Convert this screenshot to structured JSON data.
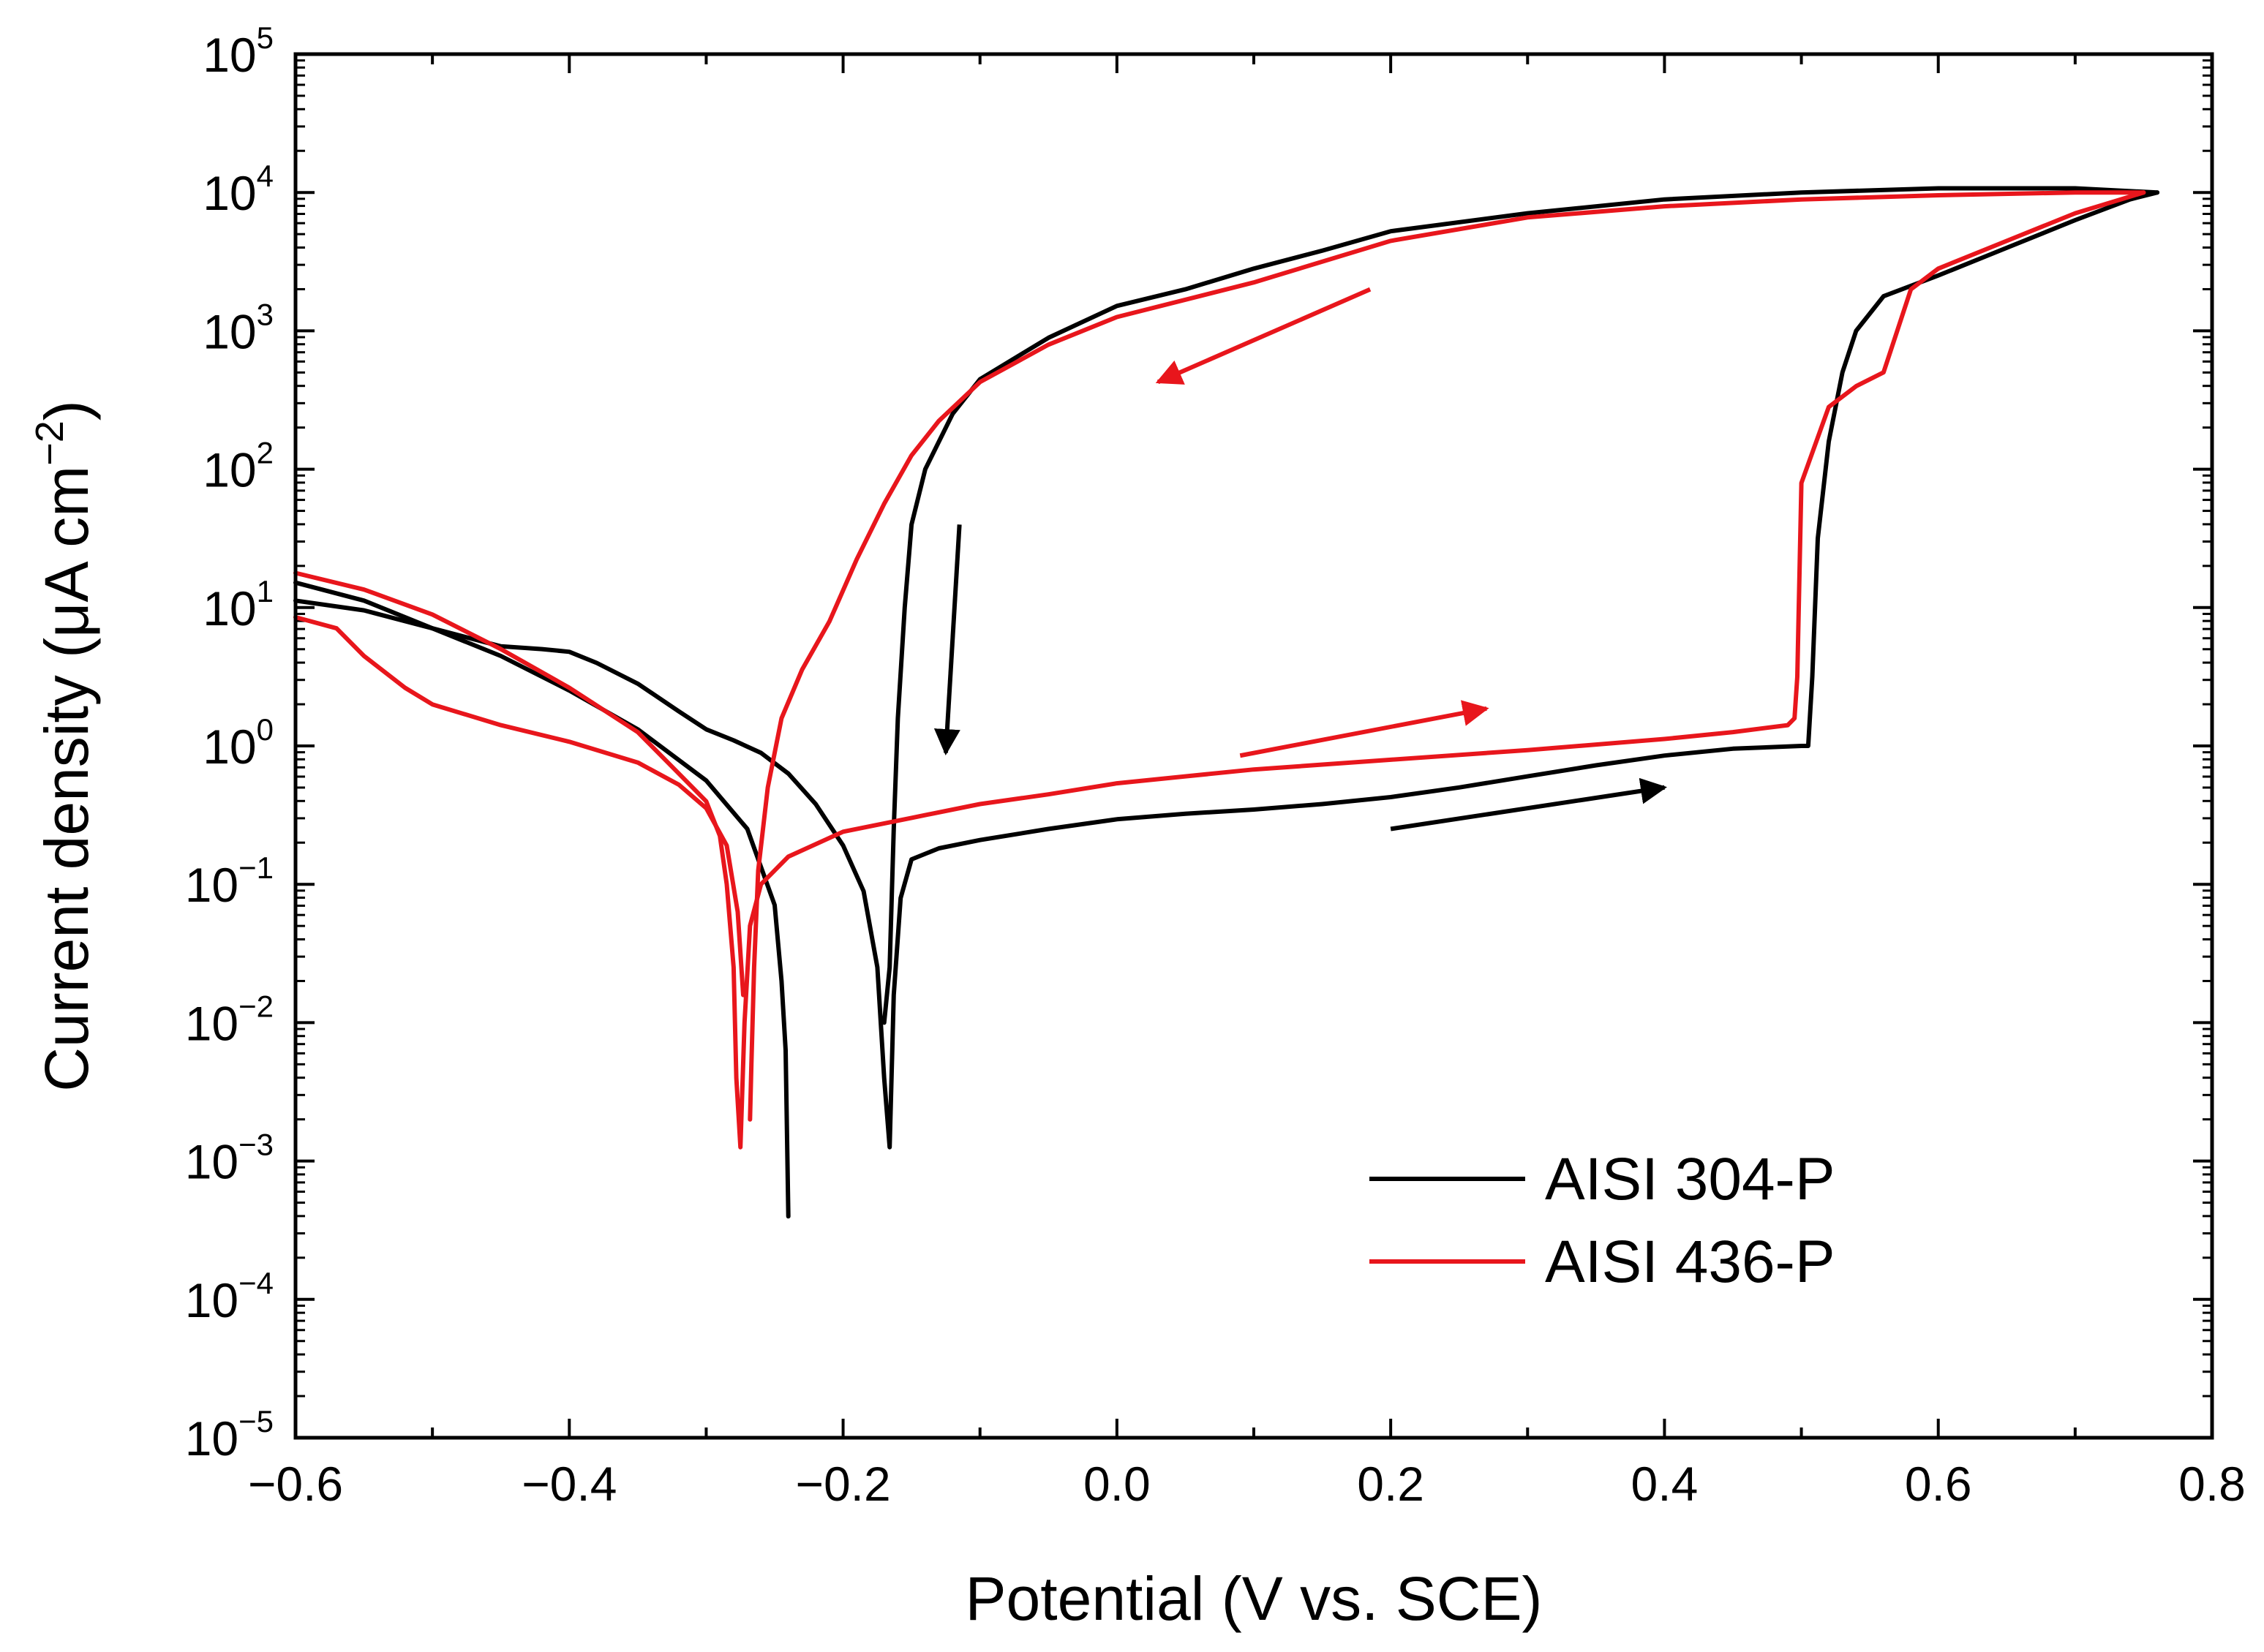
{
  "chart_data": {
    "type": "line",
    "title": "",
    "xlabel": "Potential (V vs. SCE)",
    "ylabel_main": "Current density (",
    "ylabel_mu": "μA",
    "ylabel_cm": " cm",
    "ylabel_sup": "−2",
    "ylabel_close": ")",
    "xlim": [
      -0.6,
      0.8
    ],
    "ylim_log10": [
      -5,
      5
    ],
    "yscale": "log",
    "xticks": [
      {
        "v": -0.6,
        "label": "−0.6"
      },
      {
        "v": -0.4,
        "label": "−0.4"
      },
      {
        "v": -0.2,
        "label": "−0.2"
      },
      {
        "v": 0.0,
        "label": "0.0"
      },
      {
        "v": 0.2,
        "label": "0.2"
      },
      {
        "v": 0.4,
        "label": "0.4"
      },
      {
        "v": 0.6,
        "label": "0.6"
      },
      {
        "v": 0.8,
        "label": "0.8"
      }
    ],
    "yticks": [
      {
        "e": 5,
        "base": "10",
        "exp": "5"
      },
      {
        "e": 4,
        "base": "10",
        "exp": "4"
      },
      {
        "e": 3,
        "base": "10",
        "exp": "3"
      },
      {
        "e": 2,
        "base": "10",
        "exp": "2"
      },
      {
        "e": 1,
        "base": "10",
        "exp": "1"
      },
      {
        "e": 0,
        "base": "10",
        "exp": "0"
      },
      {
        "e": -1,
        "base": "10",
        "exp": "−1"
      },
      {
        "e": -2,
        "base": "10",
        "exp": "−2"
      },
      {
        "e": -3,
        "base": "10",
        "exp": "−3"
      },
      {
        "e": -4,
        "base": "10",
        "exp": "−4"
      },
      {
        "e": -5,
        "base": "10",
        "exp": "−5"
      }
    ],
    "legend_position": "bottom-right",
    "series": [
      {
        "name": "AISI 304-P",
        "color": "#000000",
        "segments": [
          [
            [
              -0.6,
              1.18
            ],
            [
              -0.55,
              1.05
            ],
            [
              -0.5,
              0.85
            ],
            [
              -0.45,
              0.72
            ],
            [
              -0.42,
              0.7
            ],
            [
              -0.4,
              0.68
            ],
            [
              -0.38,
              0.6
            ],
            [
              -0.35,
              0.45
            ],
            [
              -0.32,
              0.25
            ],
            [
              -0.3,
              0.12
            ],
            [
              -0.28,
              0.04
            ],
            [
              -0.26,
              -0.05
            ],
            [
              -0.24,
              -0.2
            ],
            [
              -0.22,
              -0.42
            ],
            [
              -0.2,
              -0.72
            ],
            [
              -0.185,
              -1.05
            ],
            [
              -0.175,
              -1.6
            ],
            [
              -0.17,
              -2.4
            ],
            [
              -0.166,
              -2.9
            ],
            [
              -0.163,
              -1.8
            ],
            [
              -0.158,
              -1.1
            ],
            [
              -0.15,
              -0.82
            ],
            [
              -0.13,
              -0.74
            ],
            [
              -0.1,
              -0.68
            ],
            [
              -0.05,
              -0.6
            ],
            [
              0.0,
              -0.53
            ],
            [
              0.05,
              -0.49
            ],
            [
              0.1,
              -0.46
            ],
            [
              0.15,
              -0.42
            ],
            [
              0.2,
              -0.37
            ],
            [
              0.25,
              -0.3
            ],
            [
              0.3,
              -0.22
            ],
            [
              0.35,
              -0.14
            ],
            [
              0.4,
              -0.07
            ],
            [
              0.45,
              -0.02
            ],
            [
              0.5,
              0.0
            ],
            [
              0.505,
              0.0
            ],
            [
              0.508,
              0.5
            ],
            [
              0.512,
              1.5
            ],
            [
              0.52,
              2.2
            ],
            [
              0.53,
              2.7
            ],
            [
              0.54,
              3.0
            ],
            [
              0.56,
              3.25
            ],
            [
              0.6,
              3.4
            ],
            [
              0.65,
              3.6
            ],
            [
              0.7,
              3.8
            ],
            [
              0.74,
              3.95
            ],
            [
              0.76,
              4.0
            ]
          ],
          [
            [
              0.76,
              4.0
            ],
            [
              0.7,
              4.03
            ],
            [
              0.6,
              4.03
            ],
            [
              0.5,
              4.0
            ],
            [
              0.4,
              3.95
            ],
            [
              0.3,
              3.85
            ],
            [
              0.2,
              3.72
            ],
            [
              0.15,
              3.58
            ],
            [
              0.1,
              3.45
            ],
            [
              0.05,
              3.3
            ],
            [
              0.0,
              3.18
            ],
            [
              -0.05,
              2.95
            ],
            [
              -0.1,
              2.65
            ],
            [
              -0.12,
              2.4
            ],
            [
              -0.14,
              2.0
            ],
            [
              -0.15,
              1.6
            ],
            [
              -0.155,
              1.0
            ],
            [
              -0.16,
              0.2
            ],
            [
              -0.163,
              -0.6
            ],
            [
              -0.166,
              -1.6
            ],
            [
              -0.17,
              -2.0
            ]
          ],
          [
            [
              -0.6,
              1.05
            ],
            [
              -0.55,
              0.98
            ],
            [
              -0.5,
              0.85
            ],
            [
              -0.45,
              0.65
            ],
            [
              -0.4,
              0.4
            ],
            [
              -0.35,
              0.12
            ],
            [
              -0.3,
              -0.25
            ],
            [
              -0.27,
              -0.6
            ],
            [
              -0.25,
              -1.15
            ],
            [
              -0.245,
              -1.7
            ],
            [
              -0.242,
              -2.2
            ],
            [
              -0.24,
              -3.4
            ]
          ]
        ]
      },
      {
        "name": "AISI 436-P",
        "color": "#e8161c",
        "segments": [
          [
            [
              -0.6,
              1.25
            ],
            [
              -0.55,
              1.13
            ],
            [
              -0.5,
              0.95
            ],
            [
              -0.45,
              0.7
            ],
            [
              -0.4,
              0.42
            ],
            [
              -0.35,
              0.1
            ],
            [
              -0.32,
              -0.2
            ],
            [
              -0.3,
              -0.4
            ],
            [
              -0.29,
              -0.65
            ],
            [
              -0.285,
              -1.0
            ],
            [
              -0.28,
              -1.6
            ],
            [
              -0.278,
              -2.4
            ],
            [
              -0.275,
              -2.9
            ],
            [
              -0.272,
              -2.0
            ],
            [
              -0.268,
              -1.3
            ],
            [
              -0.26,
              -1.0
            ],
            [
              -0.24,
              -0.8
            ],
            [
              -0.2,
              -0.62
            ],
            [
              -0.15,
              -0.52
            ],
            [
              -0.1,
              -0.42
            ],
            [
              -0.05,
              -0.35
            ],
            [
              0.0,
              -0.27
            ],
            [
              0.05,
              -0.22
            ],
            [
              0.1,
              -0.17
            ],
            [
              0.2,
              -0.1
            ],
            [
              0.3,
              -0.03
            ],
            [
              0.4,
              0.05
            ],
            [
              0.45,
              0.1
            ],
            [
              0.49,
              0.15
            ],
            [
              0.495,
              0.2
            ],
            [
              0.497,
              0.5
            ],
            [
              0.5,
              1.9
            ],
            [
              0.52,
              2.45
            ],
            [
              0.54,
              2.6
            ],
            [
              0.56,
              2.7
            ],
            [
              0.57,
              3.0
            ],
            [
              0.58,
              3.3
            ],
            [
              0.6,
              3.45
            ],
            [
              0.65,
              3.65
            ],
            [
              0.7,
              3.85
            ],
            [
              0.75,
              4.0
            ]
          ],
          [
            [
              0.75,
              4.0
            ],
            [
              0.7,
              4.0
            ],
            [
              0.6,
              3.98
            ],
            [
              0.5,
              3.95
            ],
            [
              0.4,
              3.9
            ],
            [
              0.3,
              3.82
            ],
            [
              0.2,
              3.65
            ],
            [
              0.1,
              3.35
            ],
            [
              0.0,
              3.1
            ],
            [
              -0.05,
              2.9
            ],
            [
              -0.1,
              2.63
            ],
            [
              -0.13,
              2.35
            ],
            [
              -0.15,
              2.1
            ],
            [
              -0.17,
              1.75
            ],
            [
              -0.19,
              1.35
            ],
            [
              -0.21,
              0.9
            ],
            [
              -0.23,
              0.55
            ],
            [
              -0.245,
              0.2
            ],
            [
              -0.255,
              -0.3
            ],
            [
              -0.262,
              -0.9
            ],
            [
              -0.265,
              -1.6
            ],
            [
              -0.267,
              -2.3
            ],
            [
              -0.268,
              -2.7
            ]
          ],
          [
            [
              -0.6,
              0.93
            ],
            [
              -0.57,
              0.85
            ],
            [
              -0.55,
              0.65
            ],
            [
              -0.52,
              0.42
            ],
            [
              -0.5,
              0.3
            ],
            [
              -0.45,
              0.15
            ],
            [
              -0.4,
              0.03
            ],
            [
              -0.35,
              -0.12
            ],
            [
              -0.32,
              -0.28
            ],
            [
              -0.3,
              -0.45
            ],
            [
              -0.285,
              -0.72
            ],
            [
              -0.277,
              -1.2
            ],
            [
              -0.273,
              -1.8
            ]
          ]
        ]
      }
    ],
    "annotations": [
      {
        "type": "arrow",
        "color": "#e8161c",
        "from": [
          0.185,
          3.3
        ],
        "to": [
          0.03,
          2.63
        ],
        "meaning": "reverse scan"
      },
      {
        "type": "arrow",
        "color": "#000000",
        "from": [
          -0.115,
          1.6
        ],
        "to": [
          -0.125,
          -0.05
        ],
        "meaning": "reverse scan"
      },
      {
        "type": "arrow",
        "color": "#e8161c",
        "from": [
          0.09,
          -0.07
        ],
        "to": [
          0.27,
          0.27
        ],
        "meaning": "forward scan"
      },
      {
        "type": "arrow",
        "color": "#000000",
        "from": [
          0.2,
          -0.6
        ],
        "to": [
          0.4,
          -0.3
        ],
        "meaning": "forward scan"
      }
    ]
  }
}
